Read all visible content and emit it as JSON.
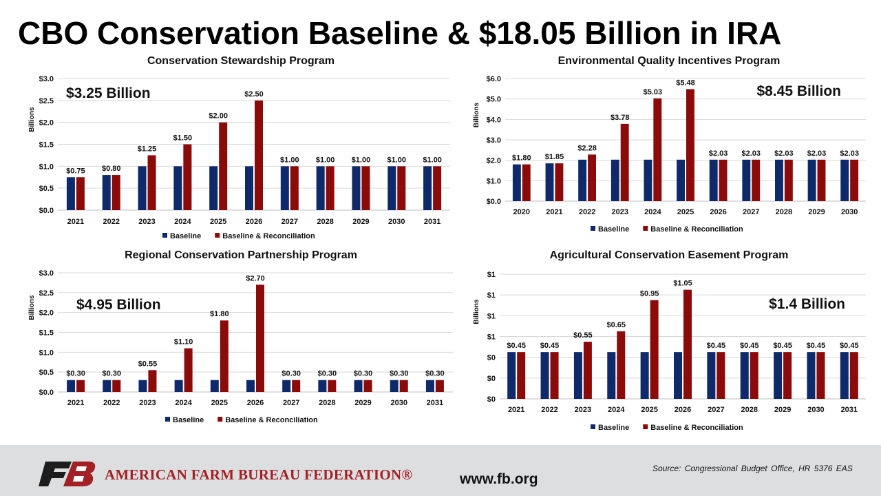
{
  "header": {
    "title": "CBO Conservation Baseline & $18.05 Billion in IRA"
  },
  "colors": {
    "baseline": "#0f2a6b",
    "reconciliation": "#8b0a0a",
    "brand": "#a32124"
  },
  "chart_data": [
    {
      "type": "bar",
      "title": "Conservation Stewardship Program",
      "ylabel": "Billions",
      "xlabel": "",
      "annotation": "$3.25 Billion",
      "categories": [
        "2021",
        "2022",
        "2023",
        "2024",
        "2025",
        "2026",
        "2027",
        "2028",
        "2029",
        "2030",
        "2031"
      ],
      "ylim": [
        0,
        3.0
      ],
      "yticks": [
        "$0.0",
        "$0.5",
        "$1.0",
        "$1.5",
        "$2.0",
        "$2.5",
        "$3.0"
      ],
      "grid": true,
      "legend": "bottom",
      "series": [
        {
          "name": "Baseline",
          "values": [
            0.75,
            0.8,
            1.0,
            1.0,
            1.0,
            1.0,
            1.0,
            1.0,
            1.0,
            1.0,
            1.0
          ]
        },
        {
          "name": "Baseline & Reconciliation",
          "values": [
            0.75,
            0.8,
            1.25,
            1.5,
            2.0,
            2.5,
            1.0,
            1.0,
            1.0,
            1.0,
            1.0
          ]
        }
      ],
      "data_labels": [
        "$0.75",
        "$0.80",
        "$1.25",
        "$1.50",
        "$2.00",
        "$2.50",
        "$1.00",
        "$1.00",
        "$1.00",
        "$1.00",
        "$1.00"
      ]
    },
    {
      "type": "bar",
      "title": "Environmental Quality Incentives Program",
      "ylabel": "Billions",
      "xlabel": "",
      "annotation": "$8.45 Billion",
      "categories": [
        "2020",
        "2021",
        "2022",
        "2023",
        "2024",
        "2025",
        "2026",
        "2027",
        "2028",
        "2029",
        "2030"
      ],
      "ylim": [
        0,
        6.0
      ],
      "yticks": [
        "$0.0",
        "$1.0",
        "$2.0",
        "$3.0",
        "$4.0",
        "$5.0",
        "$6.0"
      ],
      "grid": true,
      "legend": "bottom",
      "series": [
        {
          "name": "Baseline",
          "values": [
            1.8,
            1.85,
            2.03,
            2.03,
            2.03,
            2.03,
            2.03,
            2.03,
            2.03,
            2.03,
            2.03
          ]
        },
        {
          "name": "Baseline & Reconciliation",
          "values": [
            1.8,
            1.85,
            2.28,
            3.78,
            5.03,
            5.48,
            2.03,
            2.03,
            2.03,
            2.03,
            2.03
          ]
        }
      ],
      "data_labels": [
        "$1.80",
        "$1.85",
        "$2.28",
        "$3.78",
        "$5.03",
        "$5.48",
        "$2.03",
        "$2.03",
        "$2.03",
        "$2.03",
        "$2.03"
      ]
    },
    {
      "type": "bar",
      "title": "Regional Conservation Partnership Program",
      "ylabel": "Billions",
      "xlabel": "",
      "annotation": "$4.95 Billion",
      "categories": [
        "2021",
        "2022",
        "2023",
        "2024",
        "2025",
        "2026",
        "2027",
        "2028",
        "2029",
        "2030",
        "2031"
      ],
      "ylim": [
        0,
        3.0
      ],
      "yticks": [
        "$0.0",
        "$0.5",
        "$1.0",
        "$1.5",
        "$2.0",
        "$2.5",
        "$3.0"
      ],
      "grid": true,
      "legend": "bottom",
      "series": [
        {
          "name": "Baseline",
          "values": [
            0.3,
            0.3,
            0.3,
            0.3,
            0.3,
            0.3,
            0.3,
            0.3,
            0.3,
            0.3,
            0.3
          ]
        },
        {
          "name": "Baseline & Reconciliation",
          "values": [
            0.3,
            0.3,
            0.55,
            1.1,
            1.8,
            2.7,
            0.3,
            0.3,
            0.3,
            0.3,
            0.3
          ]
        }
      ],
      "data_labels": [
        "$0.30",
        "$0.30",
        "$0.55",
        "$1.10",
        "$1.80",
        "$2.70",
        "$0.30",
        "$0.30",
        "$0.30",
        "$0.30",
        "$0.30"
      ]
    },
    {
      "type": "bar",
      "title": "Agricultural Conservation Easement Program",
      "ylabel": "Billions",
      "xlabel": "",
      "annotation": "$1.4 Billion",
      "categories": [
        "2021",
        "2022",
        "2023",
        "2024",
        "2025",
        "2026",
        "2027",
        "2028",
        "2029",
        "2030",
        "2031"
      ],
      "ylim": [
        0,
        1.2
      ],
      "yticks": [
        "$0",
        "$0",
        "$0",
        "$1",
        "$1",
        "$1",
        "$1"
      ],
      "grid": true,
      "legend": "bottom",
      "series": [
        {
          "name": "Baseline",
          "values": [
            0.45,
            0.45,
            0.45,
            0.45,
            0.45,
            0.45,
            0.45,
            0.45,
            0.45,
            0.45,
            0.45
          ]
        },
        {
          "name": "Baseline & Reconciliation",
          "values": [
            0.45,
            0.45,
            0.55,
            0.65,
            0.95,
            1.05,
            0.45,
            0.45,
            0.45,
            0.45,
            0.45
          ]
        }
      ],
      "data_labels": [
        "$0.45",
        "$0.45",
        "$0.55",
        "$0.65",
        "$0.95",
        "$1.05",
        "$0.45",
        "$0.45",
        "$0.45",
        "$0.45",
        "$0.45"
      ]
    }
  ],
  "footer": {
    "org_name": "AMERICAN FARM BUREAU FEDERATION®",
    "url": "www.fb.org",
    "source": "Source: Congressional Budget Office, HR 5376 EAS"
  }
}
